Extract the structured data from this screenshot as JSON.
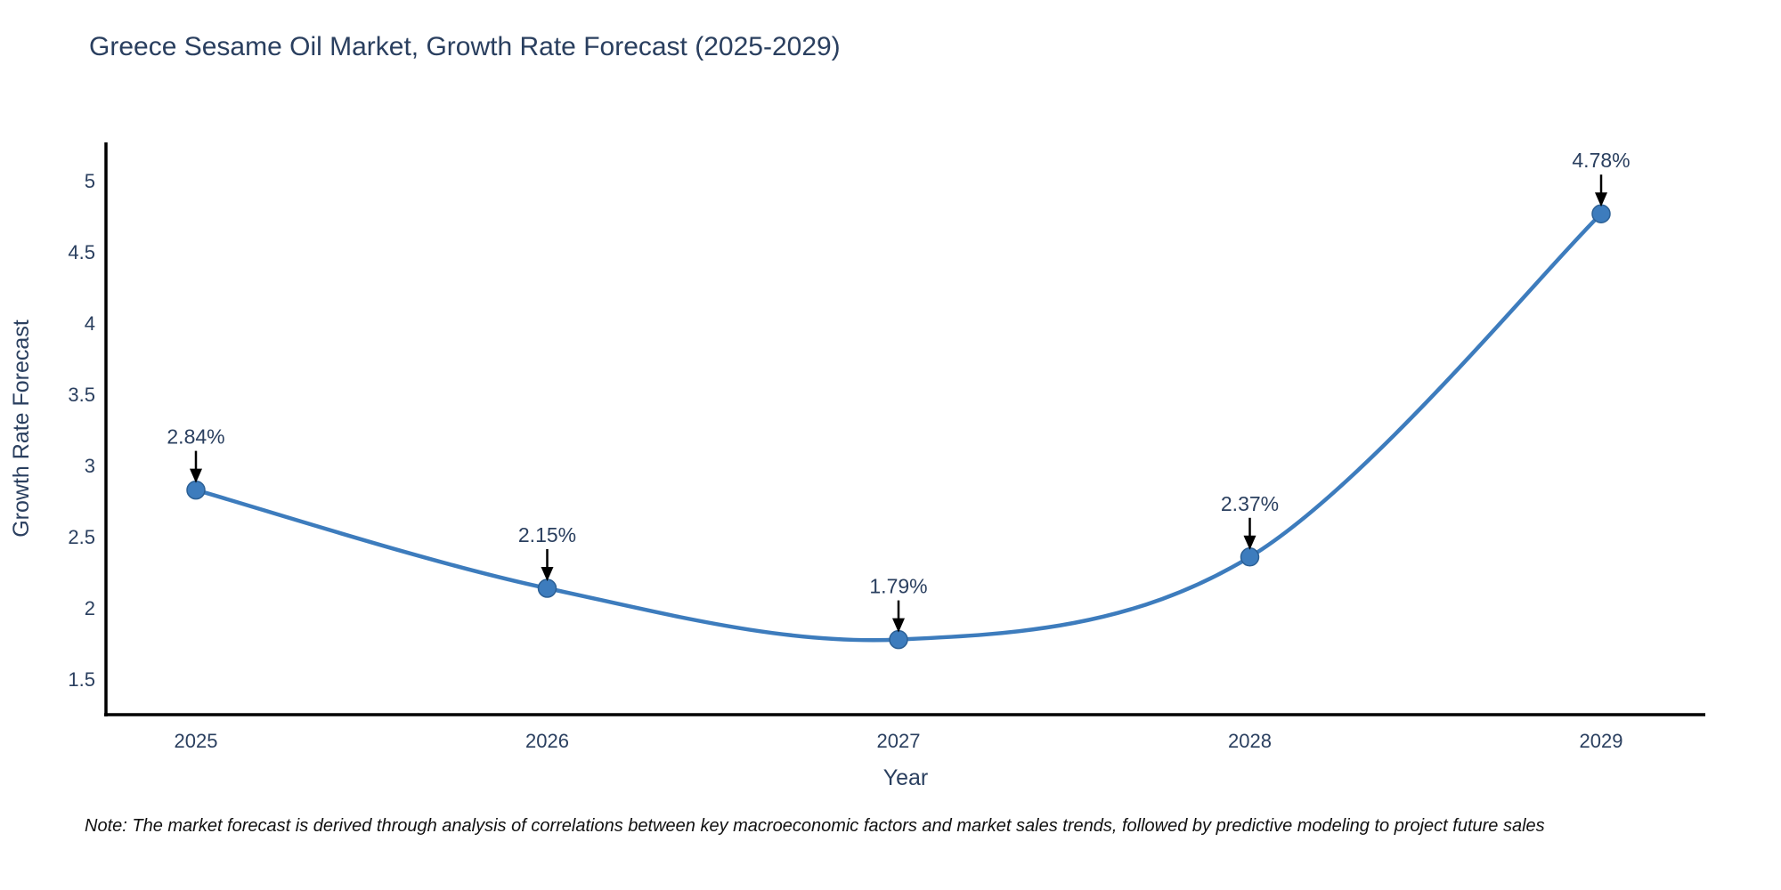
{
  "title": "Greece Sesame Oil Market, Growth Rate Forecast (2025-2029)",
  "note": "Note: The market forecast is derived through analysis of correlations between key macroeconomic factors and market sales trends, followed by predictive modeling to project future sales",
  "colors": {
    "text": "#2a3f5f",
    "line": "#3d7cbd",
    "marker_fill": "#3d7cbd",
    "marker_stroke": "#2c6095",
    "axis": "#000000",
    "arrow": "#000000",
    "note_text": "#111111",
    "background": "#ffffff"
  },
  "chart_data": {
    "type": "line",
    "title": "Greece Sesame Oil Market, Growth Rate Forecast (2025-2029)",
    "xlabel": "Year",
    "ylabel": "Growth Rate Forecast",
    "x": [
      2025,
      2026,
      2027,
      2028,
      2029
    ],
    "values": [
      2.84,
      2.15,
      1.79,
      2.37,
      4.78
    ],
    "point_labels": [
      "2.84%",
      "2.15%",
      "1.79%",
      "2.37%",
      "4.78%"
    ],
    "x_tick_labels": [
      "2025",
      "2026",
      "2027",
      "2028",
      "2029"
    ],
    "y_ticks": [
      1.5,
      2,
      2.5,
      3,
      3.5,
      4,
      4.5,
      5
    ],
    "ylim": [
      1.26,
      5.28
    ],
    "grid": false,
    "legend": "none",
    "line_shape": "spline",
    "annotations": "percent value labels with black down arrows above each data point"
  }
}
